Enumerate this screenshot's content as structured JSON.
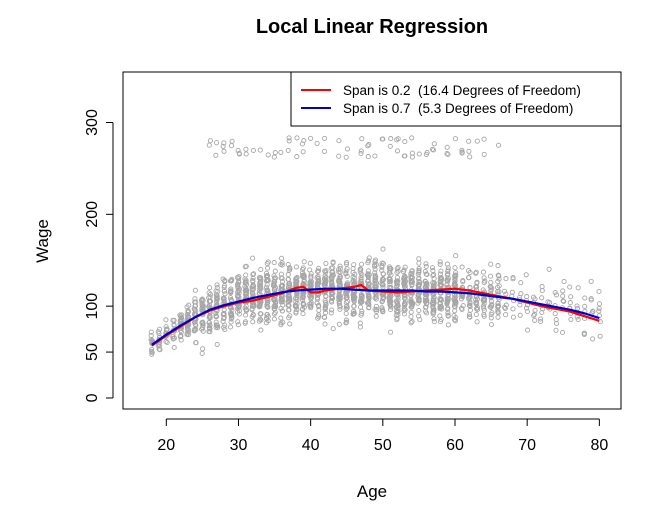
{
  "chart_data": {
    "type": "scatter",
    "title": "Local Linear Regression",
    "xlabel": "Age",
    "ylabel": "Wage",
    "xlim": [
      14,
      83
    ],
    "ylim": [
      -12,
      355
    ],
    "x_ticks": [
      20,
      30,
      40,
      50,
      60,
      70,
      80
    ],
    "y_ticks": [
      0,
      50,
      100,
      200,
      300
    ],
    "grid": false,
    "legend_position": "top-right",
    "point_color": "#a6a6a6",
    "series": [
      {
        "name": "Span is 0.2  (16.4 Degrees of Freedom)",
        "color": "#ff0000",
        "x": [
          18,
          20,
          22,
          24,
          26,
          28,
          30,
          32,
          34,
          36,
          38,
          39,
          40,
          41,
          42,
          44,
          46,
          47,
          48,
          50,
          52,
          54,
          56,
          58,
          60,
          62,
          64,
          66,
          68,
          70,
          72,
          74,
          76,
          78,
          80
        ],
        "y": [
          57,
          68,
          78,
          88,
          95,
          100,
          104,
          106,
          110,
          114,
          120,
          121,
          115,
          115,
          117,
          119,
          121,
          123,
          117,
          116,
          115,
          116,
          117,
          118,
          119,
          117,
          114,
          111,
          108,
          104,
          100,
          97,
          94,
          89,
          84
        ]
      },
      {
        "name": "Span is 0.7  (5.3 Degrees of Freedom)",
        "color": "#0000cc",
        "x": [
          18,
          20,
          22,
          24,
          26,
          28,
          30,
          32,
          34,
          36,
          38,
          40,
          42,
          44,
          46,
          48,
          50,
          52,
          54,
          56,
          58,
          60,
          62,
          64,
          66,
          68,
          70,
          72,
          74,
          76,
          78,
          80
        ],
        "y": [
          58,
          69,
          79,
          88,
          96,
          101,
          105,
          109,
          112,
          115,
          117,
          118,
          119,
          119,
          118,
          117,
          117,
          117,
          117,
          116,
          116,
          115,
          114,
          112,
          110,
          108,
          105,
          102,
          99,
          96,
          92,
          87
        ]
      }
    ]
  }
}
